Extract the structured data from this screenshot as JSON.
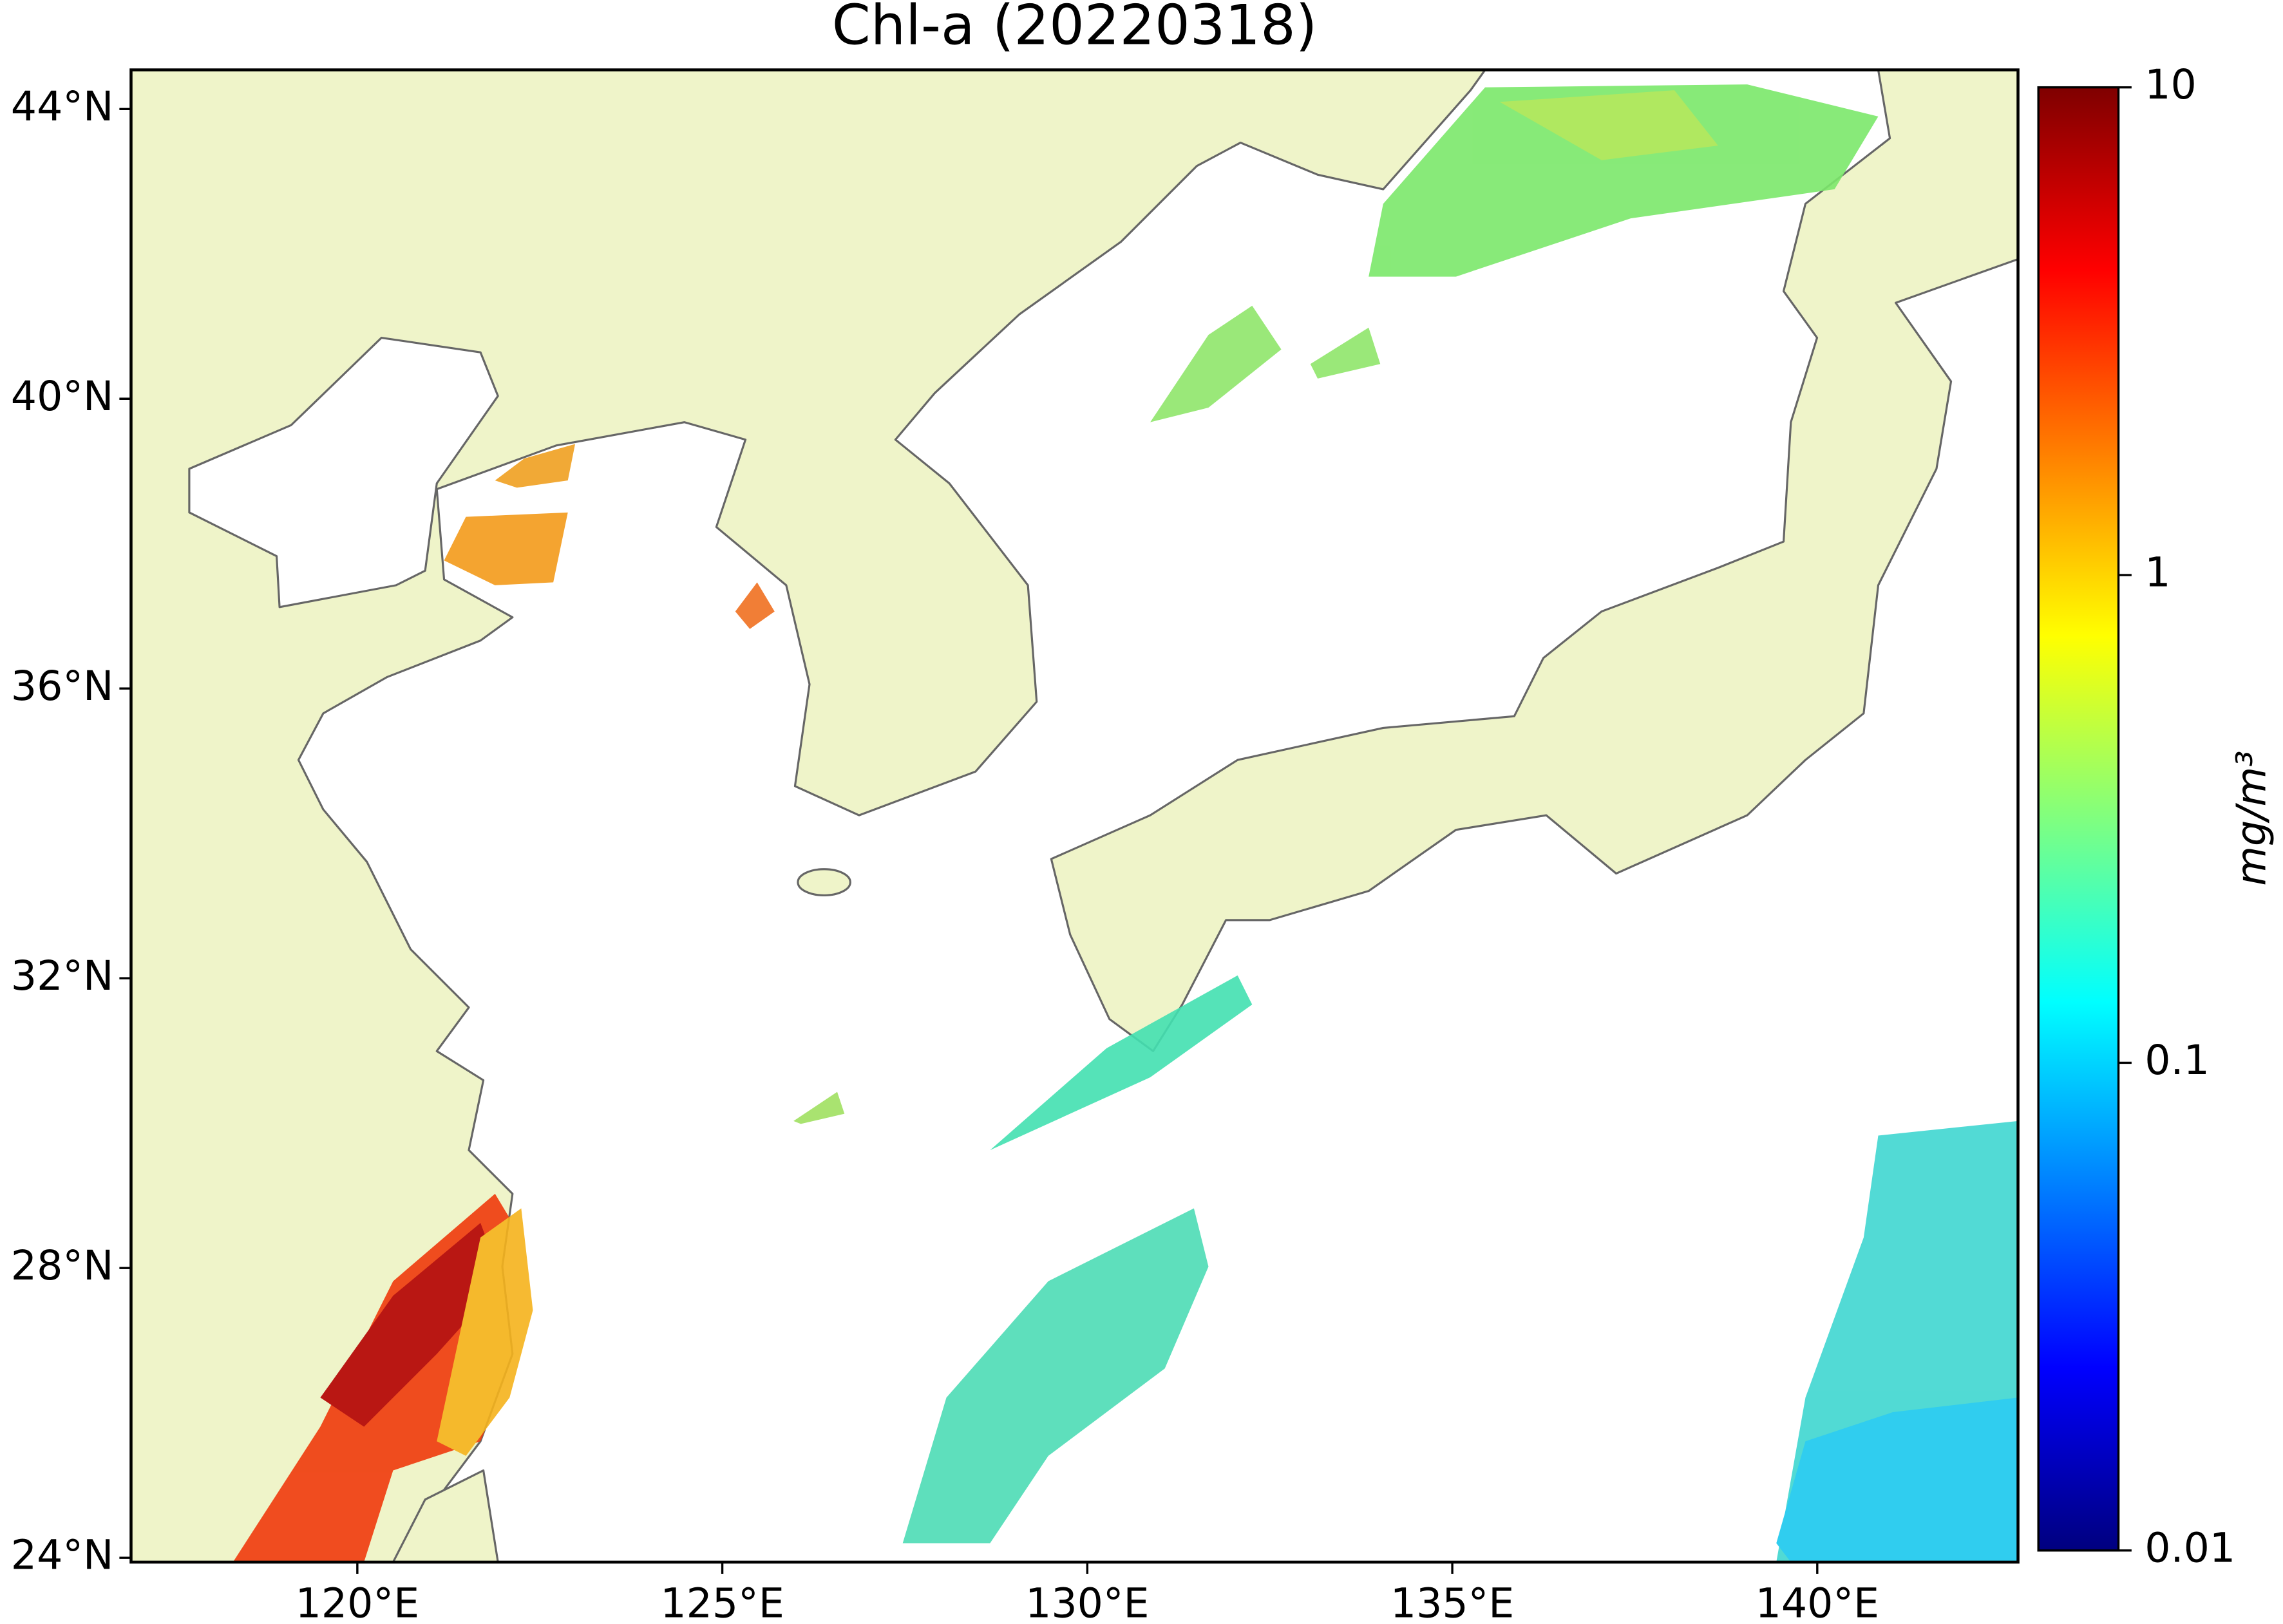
{
  "chart_data": {
    "type": "map",
    "title": "Chl-a (20220318)",
    "xlim": [
      116.9,
      142.75
    ],
    "ylim": [
      23.94,
      44.54
    ],
    "xticks": [
      {
        "value": 120,
        "label": "120°E"
      },
      {
        "value": 125,
        "label": "125°E"
      },
      {
        "value": 130,
        "label": "130°E"
      },
      {
        "value": 135,
        "label": "135°E"
      },
      {
        "value": 140,
        "label": "140°E"
      }
    ],
    "yticks": [
      {
        "value": 24,
        "label": "24°N"
      },
      {
        "value": 28,
        "label": "28°N"
      },
      {
        "value": 32,
        "label": "32°N"
      },
      {
        "value": 36,
        "label": "36°N"
      },
      {
        "value": 40,
        "label": "40°N"
      },
      {
        "value": 44,
        "label": "44°N"
      }
    ],
    "colorbar": {
      "label": "mg/m³",
      "scale": "log",
      "colormap": "jet",
      "lim": [
        0.01,
        10
      ],
      "ticks": [
        0.01,
        0.1,
        1,
        10
      ]
    }
  }
}
